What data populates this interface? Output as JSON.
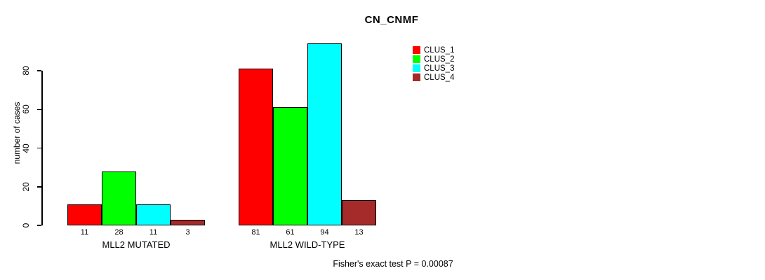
{
  "chart_data": {
    "type": "bar",
    "title": "CN_CNMF",
    "ylabel": "number of cases",
    "xlabel": "",
    "categories": [
      "MLL2 MUTATED",
      "MLL2 WILD-TYPE"
    ],
    "series": [
      {
        "name": "CLUS_1",
        "color": "#ff0000",
        "values": [
          11,
          81
        ]
      },
      {
        "name": "CLUS_2",
        "color": "#00ff00",
        "values": [
          28,
          61
        ]
      },
      {
        "name": "CLUS_3",
        "color": "#00ffff",
        "values": [
          11,
          94
        ]
      },
      {
        "name": "CLUS_4",
        "color": "#a52a2a",
        "values": [
          3,
          13
        ]
      }
    ],
    "bar_value_labels": [
      [
        "11",
        "28",
        "11",
        "3"
      ],
      [
        "81",
        "61",
        "94",
        "13"
      ]
    ],
    "y_ticks": [
      "0",
      "20",
      "40",
      "60",
      "80"
    ],
    "ylim": [
      0,
      94
    ],
    "grid": false,
    "legend_position": "top-right",
    "legend_entries": [
      "CLUS_1",
      "CLUS_2",
      "CLUS_3",
      "CLUS_4"
    ],
    "annotation": "Fisher's exact test P = 0.00087"
  }
}
